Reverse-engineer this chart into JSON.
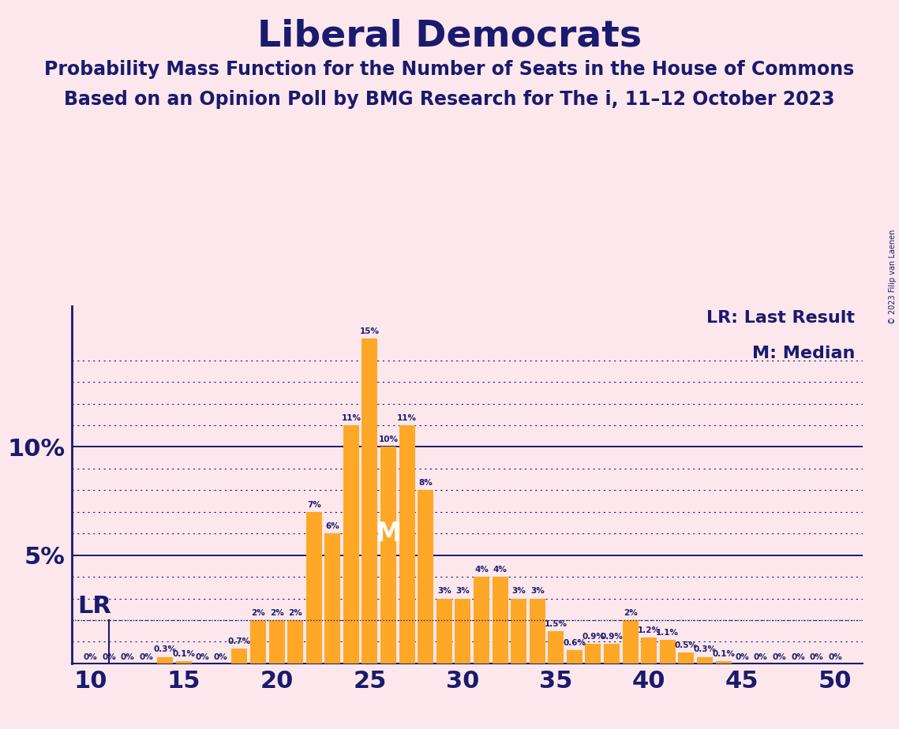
{
  "title": "Liberal Democrats",
  "subtitle1": "Probability Mass Function for the Number of Seats in the House of Commons",
  "subtitle2": "Based on an Opinion Poll by BMG Research for The i, 11–12 October 2023",
  "background_color": "#fce8ec",
  "bar_color": "#FFA726",
  "text_color": "#1a1a6e",
  "lr_label": "LR",
  "m_label": "M",
  "lr_seat": 11,
  "lr_y": 2.0,
  "median_seat": 26,
  "seats": [
    10,
    11,
    12,
    13,
    14,
    15,
    16,
    17,
    18,
    19,
    20,
    21,
    22,
    23,
    24,
    25,
    26,
    27,
    28,
    29,
    30,
    31,
    32,
    33,
    34,
    35,
    36,
    37,
    38,
    39,
    40,
    41,
    42,
    43,
    44,
    45,
    46,
    47,
    48,
    49,
    50
  ],
  "values": [
    0.0,
    0.0,
    0.0,
    0.0,
    0.3,
    0.1,
    0.0,
    0.0,
    0.7,
    2.0,
    2.0,
    2.0,
    7.0,
    6.0,
    11.0,
    15.0,
    10.0,
    11.0,
    8.0,
    3.0,
    3.0,
    4.0,
    4.0,
    3.0,
    3.0,
    1.5,
    0.6,
    0.9,
    0.9,
    2.0,
    1.2,
    1.1,
    0.5,
    0.3,
    0.1,
    0.0,
    0.0,
    0.0,
    0.0,
    0.0,
    0.0
  ],
  "bar_labels": [
    "0%",
    "0%",
    "0%",
    "0%",
    "0.3%",
    "0.1%",
    "0%",
    "0%",
    "0.7%",
    "2%",
    "2%",
    "2%",
    "7%",
    "6%",
    "11%",
    "15%",
    "10%",
    "11%",
    "8%",
    "3%",
    "3%",
    "4%",
    "4%",
    "3%",
    "3%",
    "1.5%",
    "0.6%",
    "0.9%",
    "0.9%",
    "2%",
    "1.2%",
    "1.1%",
    "0.5%",
    "0.3%",
    "0.1%",
    "0%",
    "0%",
    "0%",
    "0%",
    "0%",
    "0%"
  ],
  "xlim": [
    9.0,
    51.5
  ],
  "ylim": [
    0,
    16.5
  ],
  "xticks": [
    10,
    15,
    20,
    25,
    30,
    35,
    40,
    45,
    50
  ],
  "solid_yticks": [
    5.0,
    10.0
  ],
  "dotted_yticks": [
    1.0,
    2.0,
    3.0,
    4.0,
    6.0,
    7.0,
    8.0,
    9.0,
    11.0,
    12.0,
    13.0,
    14.0
  ],
  "copyright_text": "© 2023 Filip van Laenen",
  "annotation_fontsize": 7.5,
  "title_fontsize": 34,
  "subtitle_fontsize": 17,
  "axis_tick_fontsize": 22,
  "ytick_fontsize": 22,
  "legend_fontsize": 16,
  "lr_fontsize": 22,
  "m_fontsize": 24,
  "copyright_fontsize": 7
}
